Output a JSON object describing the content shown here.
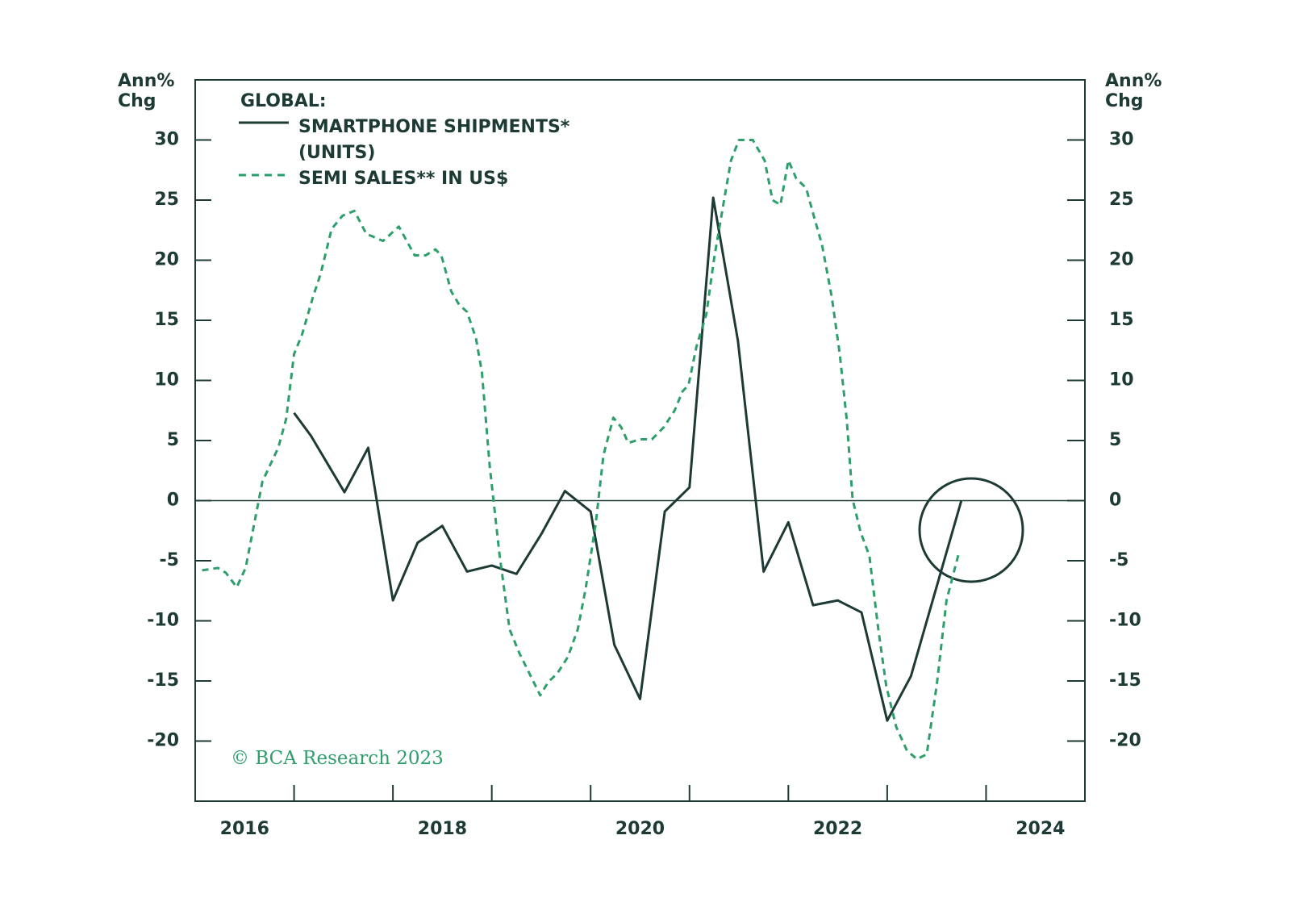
{
  "chart_data": {
    "type": "line",
    "y_label": "Ann% Chg",
    "y2_label": "Ann% Chg",
    "legend_title": "GLOBAL:",
    "source": "© BCA Research 2023",
    "xlim": [
      2016,
      2025
    ],
    "xticks": [
      2017,
      2018,
      2019,
      2020,
      2021,
      2022,
      2023,
      2024
    ],
    "xtick_labels": [
      {
        "value": 2016.5,
        "label": "2016"
      },
      {
        "value": 2018.5,
        "label": "2018"
      },
      {
        "value": 2020.5,
        "label": "2020"
      },
      {
        "value": 2022.5,
        "label": "2022"
      },
      {
        "value": 2024.55,
        "label": "2024"
      }
    ],
    "ylim": [
      -25,
      35
    ],
    "yticks": [
      -20,
      -15,
      -10,
      -5,
      0,
      5,
      10,
      15,
      20,
      25,
      30
    ],
    "y2lim": [
      -25,
      35
    ],
    "y2ticks": [
      -20,
      -15,
      -10,
      -5,
      0,
      5,
      10,
      15,
      20,
      25,
      30
    ],
    "series": [
      {
        "name": "SMARTPHONE SHIPMENTS* (UNITS)",
        "color": "#1d3a35",
        "dash": false,
        "x": [
          2017.0,
          2017.17,
          2017.51,
          2017.75,
          2018.0,
          2018.25,
          2018.5,
          2018.75,
          2019.0,
          2019.25,
          2019.5,
          2019.74,
          2020.0,
          2020.24,
          2020.5,
          2020.75,
          2021.0,
          2021.24,
          2021.49,
          2021.75,
          2022.0,
          2022.25,
          2022.5,
          2022.74,
          2023.0,
          2023.24,
          2023.75
        ],
        "values": [
          7.3,
          5.4,
          0.7,
          4.4,
          -8.3,
          -3.5,
          -2.1,
          -5.9,
          -5.4,
          -6.1,
          -2.8,
          0.8,
          -0.9,
          -12.0,
          -16.5,
          -0.9,
          1.1,
          25.2,
          13.3,
          -5.9,
          -1.8,
          -8.7,
          -8.3,
          -9.3,
          -18.3,
          -14.6,
          0.0
        ]
      },
      {
        "name": "SEMI SALES** IN US$",
        "color": "#2e9e6b",
        "dash": true,
        "x": [
          2016.07,
          2016.23,
          2016.31,
          2016.42,
          2016.51,
          2016.68,
          2016.84,
          2016.92,
          2017.0,
          2017.08,
          2017.19,
          2017.27,
          2017.38,
          2017.49,
          2017.61,
          2017.73,
          2017.9,
          2018.06,
          2018.22,
          2018.33,
          2018.43,
          2018.49,
          2018.59,
          2018.67,
          2018.75,
          2018.84,
          2018.9,
          2018.98,
          2019.08,
          2019.18,
          2019.28,
          2019.4,
          2019.49,
          2019.57,
          2019.66,
          2019.77,
          2019.87,
          2019.95,
          2020.05,
          2020.13,
          2020.23,
          2020.31,
          2020.38,
          2020.5,
          2020.62,
          2020.74,
          2020.85,
          2020.93,
          2020.99,
          2021.07,
          2021.17,
          2021.25,
          2021.35,
          2021.42,
          2021.5,
          2021.64,
          2021.76,
          2021.84,
          2021.92,
          2022.0,
          2022.08,
          2022.18,
          2022.26,
          2022.34,
          2022.44,
          2022.52,
          2022.59,
          2022.65,
          2022.73,
          2022.82,
          2022.91,
          2022.99,
          2023.09,
          2023.2,
          2023.3,
          2023.4,
          2023.5,
          2023.6,
          2023.72
        ],
        "values": [
          -5.8,
          -5.6,
          -6.0,
          -7.2,
          -5.6,
          1.6,
          4.4,
          6.8,
          12.2,
          13.8,
          16.9,
          18.9,
          22.6,
          23.7,
          24.1,
          22.2,
          21.6,
          22.8,
          20.4,
          20.4,
          20.9,
          20.4,
          17.4,
          16.3,
          15.7,
          13.5,
          10.7,
          2.8,
          -4.6,
          -10.7,
          -12.7,
          -14.7,
          -16.2,
          -15.1,
          -14.4,
          -13.0,
          -10.7,
          -7.3,
          -2.0,
          3.8,
          6.9,
          6.1,
          4.8,
          5.1,
          5.1,
          6.1,
          7.5,
          9.1,
          9.6,
          12.8,
          15.5,
          20.2,
          25.0,
          28.3,
          30.0,
          30.0,
          28.3,
          25.0,
          24.6,
          28.3,
          26.8,
          26.0,
          23.6,
          21.3,
          16.9,
          12.2,
          6.8,
          0.1,
          -2.6,
          -4.6,
          -10.7,
          -15.4,
          -18.8,
          -20.8,
          -21.5,
          -21.1,
          -15.4,
          -8.3,
          -4.5
        ]
      }
    ]
  }
}
